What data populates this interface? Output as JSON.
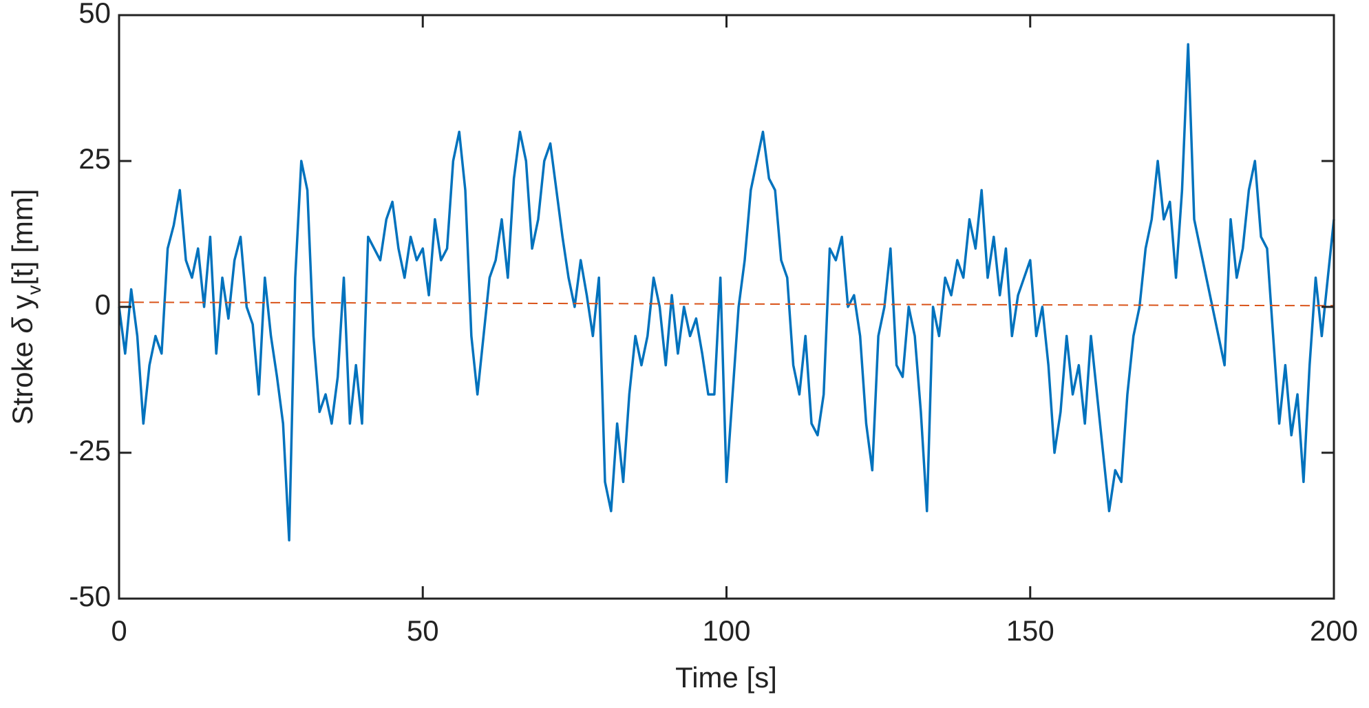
{
  "chart_data": {
    "type": "line",
    "xlabel": "Time [s]",
    "ylabel": {
      "text": "Stroke ",
      "symbol": "δ",
      "text2": " y",
      "subscript": "v",
      "suffix": "[t] [mm]"
    },
    "xlim": [
      0,
      200
    ],
    "xticks": [
      0,
      50,
      100,
      150,
      200
    ],
    "ylim": [
      -50,
      50
    ],
    "yticks": [
      -50,
      -25,
      0,
      25,
      50
    ],
    "grid": false,
    "series": [
      {
        "name": "stroke",
        "color": "#0072bd",
        "dashed": false,
        "x": [
          0,
          1,
          2,
          3,
          4,
          5,
          6,
          7,
          8,
          9,
          10,
          11,
          12,
          13,
          14,
          15,
          16,
          17,
          18,
          19,
          20,
          21,
          22,
          23,
          24,
          25,
          26,
          27,
          28,
          29,
          30,
          31,
          32,
          33,
          34,
          35,
          36,
          37,
          38,
          39,
          40,
          41,
          42,
          43,
          44,
          45,
          46,
          47,
          48,
          49,
          50,
          51,
          52,
          53,
          54,
          55,
          56,
          57,
          58,
          59,
          60,
          61,
          62,
          63,
          64,
          65,
          66,
          67,
          68,
          69,
          70,
          71,
          72,
          73,
          74,
          75,
          76,
          77,
          78,
          79,
          80,
          81,
          82,
          83,
          84,
          85,
          86,
          87,
          88,
          89,
          90,
          91,
          92,
          93,
          94,
          95,
          96,
          97,
          98,
          99,
          100,
          101,
          102,
          103,
          104,
          105,
          106,
          107,
          108,
          109,
          110,
          111,
          112,
          113,
          114,
          115,
          116,
          117,
          118,
          119,
          120,
          121,
          122,
          123,
          124,
          125,
          126,
          127,
          128,
          129,
          130,
          131,
          132,
          133,
          134,
          135,
          136,
          137,
          138,
          139,
          140,
          141,
          142,
          143,
          144,
          145,
          146,
          147,
          148,
          149,
          150,
          151,
          152,
          153,
          154,
          155,
          156,
          157,
          158,
          159,
          160,
          161,
          162,
          163,
          164,
          165,
          166,
          167,
          168,
          169,
          170,
          171,
          172,
          173,
          174,
          175,
          176,
          177,
          178,
          179,
          180,
          181,
          182,
          183,
          184,
          185,
          186,
          187,
          188,
          189,
          190,
          191,
          192,
          193,
          194,
          195,
          196,
          197,
          198,
          199,
          200
        ],
        "values": [
          0,
          -8,
          3,
          -5,
          -20,
          -10,
          -5,
          -8,
          10,
          14,
          20,
          8,
          5,
          10,
          0,
          12,
          -8,
          5,
          -2,
          8,
          12,
          0,
          -3,
          -15,
          5,
          -5,
          -12,
          -20,
          -40,
          5,
          25,
          20,
          -5,
          -18,
          -15,
          -20,
          -12,
          5,
          -20,
          -10,
          -20,
          12,
          10,
          8,
          15,
          18,
          10,
          5,
          12,
          8,
          10,
          2,
          15,
          8,
          10,
          25,
          30,
          20,
          -5,
          -15,
          -5,
          5,
          8,
          15,
          5,
          22,
          30,
          25,
          10,
          15,
          25,
          28,
          20,
          12,
          5,
          0,
          8,
          2,
          -5,
          5,
          -30,
          -35,
          -20,
          -30,
          -15,
          -5,
          -10,
          -5,
          5,
          0,
          -10,
          2,
          -8,
          0,
          -5,
          -2,
          -8,
          -15,
          -15,
          5,
          -30,
          -15,
          0,
          8,
          20,
          25,
          30,
          22,
          20,
          8,
          5,
          -10,
          -15,
          -5,
          -20,
          -22,
          -15,
          10,
          8,
          12,
          0,
          2,
          -5,
          -20,
          -28,
          -5,
          0,
          10,
          -10,
          -12,
          0,
          -5,
          -18,
          -35,
          0,
          -5,
          5,
          2,
          8,
          5,
          15,
          10,
          20,
          5,
          12,
          2,
          10,
          -5,
          2,
          5,
          8,
          -5,
          0,
          -10,
          -25,
          -18,
          -5,
          -15,
          -10,
          -20,
          -5,
          -15,
          -25,
          -35,
          -28,
          -30,
          -15,
          -5,
          0,
          10,
          15,
          25,
          15,
          18,
          5,
          20,
          45,
          15,
          10,
          5,
          0,
          -5,
          -10,
          15,
          5,
          10,
          20,
          25,
          12,
          10,
          -5,
          -20,
          -10,
          -22,
          -15,
          -30,
          -10,
          5,
          -5,
          5,
          15
        ]
      },
      {
        "name": "trend",
        "color": "#d95319",
        "dashed": true,
        "x": [
          0,
          200
        ],
        "values": [
          0.8,
          0.2
        ]
      }
    ]
  }
}
